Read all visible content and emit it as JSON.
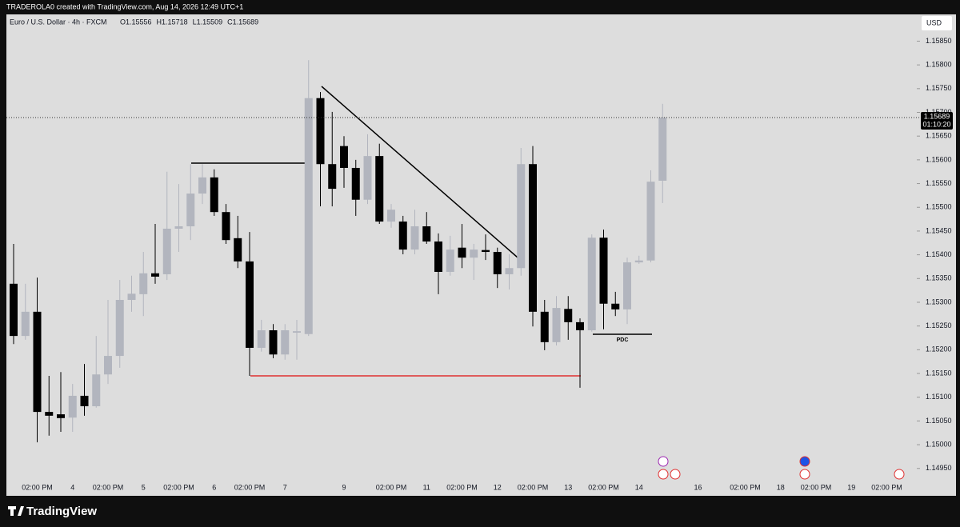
{
  "chart_data": {
    "type": "candlestick",
    "header": "TRADEROLA0 created with TradingView.com, Aug 14, 2026 12:49 UTC+1",
    "title": "Euro / U.S. Dollar · 4h · FXCM",
    "ohlc_labels": [
      "O1.15556",
      "H1.15718",
      "L1.15509",
      "C1.15689"
    ],
    "currency": "USD",
    "last_price": 1.15689,
    "countdown": "01:10:20",
    "annotation": "PDC",
    "brand": "TradingView",
    "up_color": "#b2b5be",
    "down_color": "#000000",
    "grid": false,
    "categories": [
      null,
      null,
      "02:00 PM",
      null,
      null,
      "4",
      null,
      null,
      "02:00 PM",
      null,
      null,
      "5",
      null,
      null,
      "02:00 PM",
      null,
      null,
      "6",
      null,
      null,
      "02:00 PM",
      null,
      null,
      "7",
      null,
      null,
      null,
      null,
      "9",
      null,
      null,
      null,
      "02:00 PM",
      null,
      null,
      "11",
      null,
      null,
      "02:00 PM",
      null,
      null,
      "12",
      null,
      null,
      "02:00 PM",
      null,
      null,
      "13",
      null,
      null,
      "02:00 PM",
      null,
      null,
      "14",
      null,
      null,
      null,
      null,
      "16",
      null,
      null,
      null,
      "02:00 PM",
      null,
      null,
      "18",
      null,
      null,
      "02:00 PM",
      null,
      null,
      "19",
      null,
      null,
      "02:00 PM",
      null,
      null
    ],
    "open": [
      1.15339,
      1.15229,
      1.1528,
      1.15069,
      1.15064,
      1.15057,
      1.15103,
      1.15081,
      1.15148,
      1.15187,
      1.15305,
      1.15317,
      1.15361,
      1.15359,
      1.15455,
      1.1546,
      1.15529,
      1.15563,
      1.1549,
      1.15435,
      1.15386,
      1.15204,
      1.15241,
      1.1519,
      1.15236,
      1.15233,
      1.1573,
      1.15591,
      1.15629,
      1.15583,
      1.15516,
      1.15608,
      1.1547,
      1.1547,
      1.15411,
      1.1546,
      1.15428,
      1.15364,
      1.15415,
      1.15394,
      1.1541,
      1.15406,
      1.15359,
      1.15372,
      1.15591,
      1.1528,
      1.15216,
      1.15286,
      1.15258,
      1.15241,
      1.15436,
      1.15297,
      1.15285,
      1.15384,
      1.15388,
      1.15556,
      null,
      null,
      null,
      null,
      null,
      null,
      null,
      null,
      null,
      null,
      null,
      null,
      null,
      null,
      null,
      null,
      null,
      null,
      null,
      null,
      null
    ],
    "high": [
      1.15423,
      1.15339,
      1.15352,
      1.15145,
      1.15153,
      1.15128,
      1.1517,
      1.15229,
      1.15305,
      1.15347,
      1.15356,
      1.15406,
      1.15465,
      1.15575,
      1.15549,
      1.15591,
      1.15591,
      1.1558,
      1.15507,
      1.15482,
      1.15448,
      1.15263,
      1.15254,
      1.15254,
      1.15263,
      1.1581,
      1.15743,
      1.15701,
      1.1565,
      1.156,
      1.15654,
      1.15634,
      1.15507,
      1.15482,
      1.15495,
      1.1549,
      1.15445,
      1.1544,
      1.15465,
      1.15423,
      1.15443,
      1.15415,
      1.15401,
      1.15625,
      1.15629,
      1.15305,
      1.15313,
      1.15313,
      1.15266,
      1.15443,
      1.15453,
      1.15322,
      1.15394,
      1.15398,
      1.15578,
      1.15718,
      null,
      null,
      null,
      null,
      null,
      null,
      null,
      null,
      null,
      null,
      null,
      null,
      null,
      null,
      null,
      null,
      null,
      null,
      null,
      null,
      null
    ],
    "low": [
      1.15212,
      1.15221,
      1.15005,
      1.15019,
      1.15027,
      1.15027,
      1.15061,
      1.15078,
      1.15128,
      1.15162,
      1.1528,
      1.15271,
      1.15339,
      1.15347,
      1.15406,
      1.15431,
      1.15507,
      1.15482,
      1.15423,
      1.15372,
      1.15145,
      1.15196,
      1.15182,
      1.15179,
      1.15179,
      1.15229,
      1.15502,
      1.15502,
      1.15541,
      1.15482,
      1.15507,
      1.15465,
      1.15457,
      1.15401,
      1.15401,
      1.15423,
      1.15317,
      1.15356,
      1.15372,
      1.15347,
      1.15389,
      1.1533,
      1.15327,
      1.15356,
      1.15249,
      1.15199,
      1.15209,
      1.15221,
      1.1512,
      1.15238,
      1.15243,
      1.15271,
      1.15254,
      1.15381,
      1.15384,
      1.15509,
      null,
      null,
      null,
      null,
      null,
      null,
      null,
      null,
      null,
      null,
      null,
      null,
      null,
      null,
      null,
      null,
      null,
      null,
      null,
      null,
      null
    ],
    "close": [
      1.15229,
      1.1528,
      1.15069,
      1.15061,
      1.15056,
      1.15103,
      1.15081,
      1.15148,
      1.15187,
      1.15305,
      1.15318,
      1.15361,
      1.15354,
      1.15455,
      1.1546,
      1.15529,
      1.15563,
      1.1549,
      1.15431,
      1.15386,
      1.15204,
      1.15241,
      1.1519,
      1.15241,
      1.15239,
      1.1573,
      1.15591,
      1.15539,
      1.15583,
      1.15516,
      1.15608,
      1.1547,
      1.15495,
      1.15411,
      1.1546,
      1.15428,
      1.15364,
      1.15411,
      1.15394,
      1.15411,
      1.15406,
      1.15359,
      1.15372,
      1.15591,
      1.1528,
      1.15216,
      1.15288,
      1.15258,
      1.15241,
      1.15436,
      1.15297,
      1.15285,
      1.15384,
      1.15388,
      1.15554,
      1.15689,
      null,
      null,
      null,
      null,
      null,
      null,
      null,
      null,
      null,
      null,
      null,
      null,
      null,
      null,
      null,
      null,
      null,
      null,
      null,
      null,
      null
    ],
    "ylim": [
      1.14926,
      1.15903
    ],
    "yticks": [
      {
        "value": 1.1495,
        "label": "1.14950"
      },
      {
        "value": 1.15,
        "label": "1.15000"
      },
      {
        "value": 1.1505,
        "label": "1.15050"
      },
      {
        "value": 1.151,
        "label": "1.15100"
      },
      {
        "value": 1.1515,
        "label": "1.15150"
      },
      {
        "value": 1.152,
        "label": "1.15200"
      },
      {
        "value": 1.1525,
        "label": "1.15250"
      },
      {
        "value": 1.153,
        "label": "1.15300"
      },
      {
        "value": 1.1535,
        "label": "1.15350"
      },
      {
        "value": 1.154,
        "label": "1.15400"
      },
      {
        "value": 1.1545,
        "label": "1.15450"
      },
      {
        "value": 1.155,
        "label": "1.15500"
      },
      {
        "value": 1.1555,
        "label": "1.15550"
      },
      {
        "value": 1.156,
        "label": "1.15600"
      },
      {
        "value": 1.1565,
        "label": "1.15650"
      },
      {
        "value": 1.157,
        "label": "1.15700"
      },
      {
        "value": 1.1575,
        "label": "1.15750"
      },
      {
        "value": 1.158,
        "label": "1.15800"
      },
      {
        "value": 1.1585,
        "label": "1.15850"
      }
    ]
  }
}
